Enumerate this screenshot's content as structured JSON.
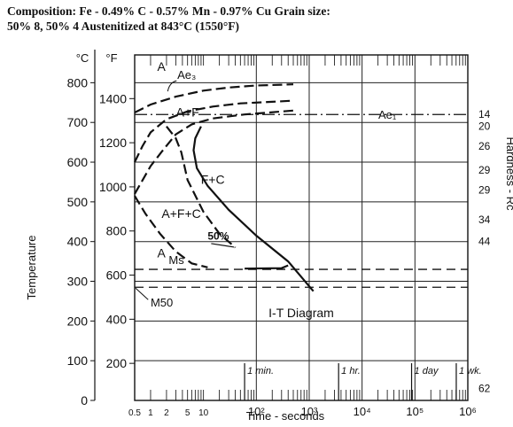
{
  "caption": {
    "line1": "Composition: Fe - 0.49% C - 0.57% Mn - 0.97% Cu Grain size:",
    "line2": "50% 8, 50% 4 Austenitized at 843°C (1550°F)"
  },
  "chart_data": {
    "type": "line",
    "title": "I-T Diagram",
    "xlabel": "Time - seconds",
    "ylabel_left": "Temperature",
    "ylabel_right": "Hardness - Rc",
    "x_scale": "log",
    "xlim": [
      0.5,
      1000000
    ],
    "ylim_c": [
      0,
      870
    ],
    "x_ticks": [
      {
        "label": "0.5",
        "value": 0.5
      },
      {
        "label": "1",
        "value": 1
      },
      {
        "label": "2",
        "value": 2
      },
      {
        "label": "5",
        "value": 5
      },
      {
        "label": "10",
        "value": 10
      },
      {
        "label": "10²",
        "value": 100
      },
      {
        "label": "10³",
        "value": 1000
      },
      {
        "label": "10⁴",
        "value": 10000
      },
      {
        "label": "10⁵",
        "value": 100000
      },
      {
        "label": "10⁶",
        "value": 1000000
      }
    ],
    "c_ticks": [
      {
        "label": "0",
        "value": 0
      },
      {
        "label": "100",
        "value": 100
      },
      {
        "label": "200",
        "value": 200
      },
      {
        "label": "300",
        "value": 300
      },
      {
        "label": "400",
        "value": 400
      },
      {
        "label": "500",
        "value": 500
      },
      {
        "label": "600",
        "value": 600
      },
      {
        "label": "700",
        "value": 700
      },
      {
        "label": "800",
        "value": 800
      }
    ],
    "f_ticks": [
      {
        "label": "200",
        "value": 200
      },
      {
        "label": "400",
        "value": 400
      },
      {
        "label": "600",
        "value": 600
      },
      {
        "label": "800",
        "value": 800
      },
      {
        "label": "1000",
        "value": 1000
      },
      {
        "label": "1200",
        "value": 1200
      },
      {
        "label": "1400",
        "value": 1400
      }
    ],
    "unit_c": "°C",
    "unit_f": "°F",
    "time_marks": [
      {
        "label": "1 min.",
        "value": 60
      },
      {
        "label": "1 hr.",
        "value": 3600
      },
      {
        "label": "1 day",
        "value": 86400
      },
      {
        "label": "1 wk.",
        "value": 604800
      }
    ],
    "hardness_labels": [
      {
        "label": "14",
        "temp_c": 720
      },
      {
        "label": "20",
        "temp_c": 690
      },
      {
        "label": "26",
        "temp_c": 640
      },
      {
        "label": "29",
        "temp_c": 580
      },
      {
        "label": "29",
        "temp_c": 530
      },
      {
        "label": "34",
        "temp_c": 455
      },
      {
        "label": "44",
        "temp_c": 400
      },
      {
        "label": "62",
        "temp_c": 30
      }
    ],
    "reference_lines": [
      {
        "label": "Ae₁",
        "temp_c": 720,
        "style": "dash-dot"
      },
      {
        "label": "Ms",
        "temp_c": 330,
        "style": "dashed"
      },
      {
        "label": "M50",
        "temp_c": 285,
        "style": "dashed"
      }
    ],
    "series": [
      {
        "label": "Ae₃",
        "style": "dashed",
        "points": [
          [
            0.5,
            725
          ],
          [
            1,
            745
          ],
          [
            3,
            765
          ],
          [
            10,
            780
          ],
          [
            30,
            788
          ],
          [
            100,
            793
          ],
          [
            500,
            796
          ]
        ]
      },
      {
        "label": "A+F",
        "style": "dashed",
        "points": [
          [
            0.5,
            600
          ],
          [
            0.7,
            640
          ],
          [
            1,
            675
          ],
          [
            2,
            708
          ],
          [
            5,
            728
          ],
          [
            15,
            740
          ],
          [
            50,
            748
          ],
          [
            200,
            752
          ],
          [
            500,
            755
          ]
        ]
      },
      {
        "label": "A+F+C",
        "style": "dashed",
        "points": [
          [
            0.5,
            520
          ],
          [
            1,
            590
          ],
          [
            1.6,
            625
          ],
          [
            3,
            670
          ],
          [
            6,
            695
          ],
          [
            15,
            710
          ],
          [
            60,
            720
          ],
          [
            500,
            730
          ]
        ]
      },
      {
        "label": "50%",
        "style": "dashed",
        "points": [
          [
            2,
            690
          ],
          [
            3,
            660
          ],
          [
            3.8,
            625
          ],
          [
            5,
            555
          ],
          [
            10,
            475
          ],
          [
            20,
            420
          ],
          [
            40,
            385
          ]
        ]
      },
      {
        "label": "F+C",
        "style": "solid",
        "points": [
          [
            9,
            690
          ],
          [
            7,
            660
          ],
          [
            6.5,
            630
          ],
          [
            7.5,
            585
          ],
          [
            12,
            540
          ],
          [
            30,
            480
          ],
          [
            100,
            415
          ],
          [
            400,
            350
          ],
          [
            1200,
            275
          ]
        ]
      },
      {
        "label": "A",
        "style": "dashed",
        "points": [
          [
            0.5,
            515
          ],
          [
            0.8,
            470
          ],
          [
            1.5,
            420
          ],
          [
            3,
            375
          ],
          [
            6,
            345
          ],
          [
            12,
            335
          ]
        ]
      },
      {
        "label": "F+C",
        "style": "solid",
        "points": [
          [
            400,
            340
          ],
          [
            300,
            333
          ],
          [
            60,
            332
          ]
        ]
      }
    ],
    "region_labels": [
      {
        "label": "A",
        "time_s": 1.6,
        "temp_c": 830
      },
      {
        "label": "A+F",
        "time_s": 5,
        "temp_c": 715
      },
      {
        "label": "F+C",
        "time_s": 15,
        "temp_c": 545
      },
      {
        "label": "A+F+C",
        "time_s": 3.8,
        "temp_c": 460
      },
      {
        "label": "A",
        "time_s": 1.6,
        "temp_c": 360
      }
    ]
  }
}
